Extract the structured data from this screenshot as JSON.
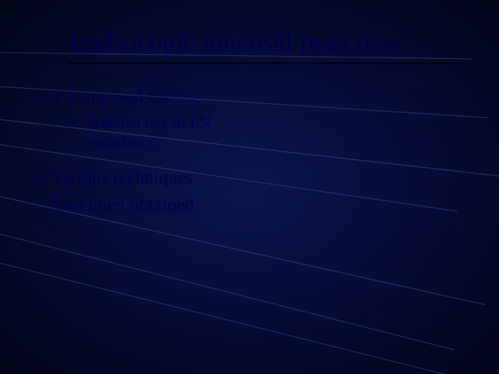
{
  "colors": {
    "background_center": "#0a1450",
    "background_outer": "#020518",
    "text": "#000050",
    "rule": "#000000",
    "line_light": "#3a4a80",
    "line_dark": "#0a1030"
  },
  "title": "Endsocopic mucosal resection",
  "typography": {
    "title_fontsize": 38,
    "l1_fontsize": 27,
    "l2_fontsize": 23,
    "font_family": "Georgia"
  },
  "bullets": [
    {
      "text": "T 1 mucosal disease",
      "sub": [
        {
          "text": "Minimal risk of LN metastases"
        }
      ]
    },
    {
      "text": "Various techniques"
    },
    {
      "text": "Specimen obtained"
    }
  ],
  "decor_lines": [
    {
      "xL": -800,
      "yL": 65,
      "xR": 680,
      "yR": 85,
      "w": 1.2,
      "c": "#3a4a80"
    },
    {
      "xL": -800,
      "yL": 70,
      "xR": 720,
      "yR": 120,
      "w": 1.2,
      "c": "#0a1030"
    },
    {
      "xL": -800,
      "yL": 74,
      "xR": 705,
      "yR": 170,
      "w": 1.2,
      "c": "#3a4a80"
    },
    {
      "xL": -800,
      "yL": 82,
      "xR": 728,
      "yR": 255,
      "w": 1.4,
      "c": "#3a4a80"
    },
    {
      "xL": -800,
      "yL": 88,
      "xR": 700,
      "yR": 330,
      "w": 1.4,
      "c": "#0a1030"
    },
    {
      "xL": -800,
      "yL": 92,
      "xR": 660,
      "yR": 305,
      "w": 1.2,
      "c": "#3a4a80"
    },
    {
      "xL": -600,
      "yL": 150,
      "xR": 700,
      "yR": 440,
      "w": 1.3,
      "c": "#3a4a80"
    },
    {
      "xL": -600,
      "yL": 170,
      "xR": 690,
      "yR": 490,
      "w": 1.3,
      "c": "#0a1030"
    },
    {
      "xL": -600,
      "yL": 185,
      "xR": 655,
      "yR": 505,
      "w": 1.2,
      "c": "#3a4a80"
    },
    {
      "xL": -400,
      "yL": 280,
      "xR": 720,
      "yR": 560,
      "w": 1.2,
      "c": "#3a4a80"
    }
  ]
}
